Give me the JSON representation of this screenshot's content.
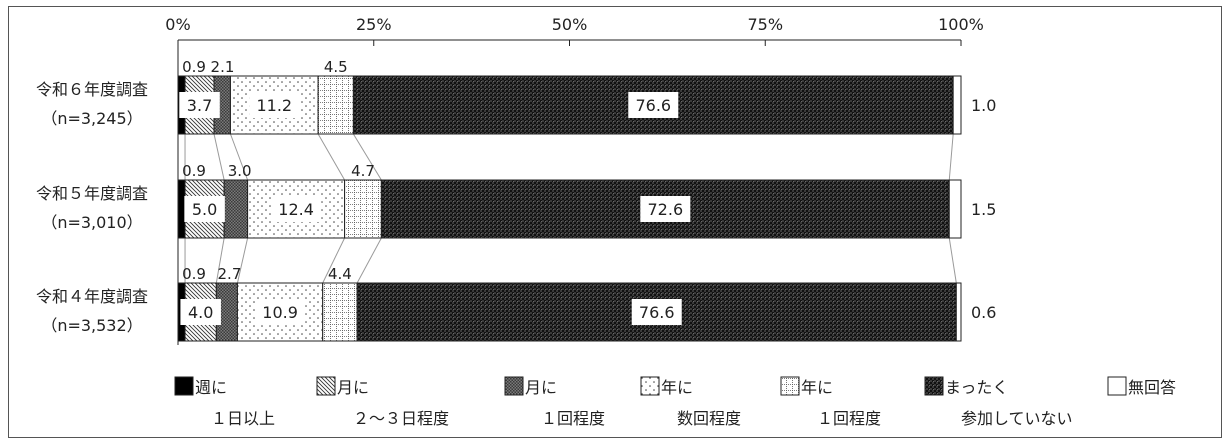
{
  "chart_data": {
    "type": "bar",
    "orientation": "horizontal",
    "stacked": true,
    "xlim": [
      0,
      100
    ],
    "x_ticks": [
      "0%",
      "25%",
      "50%",
      "75%",
      "100%"
    ],
    "grid": false,
    "legend_position": "bottom",
    "categories": [
      {
        "name": "令和６年度調査",
        "n": "（n=3,245）"
      },
      {
        "name": "令和５年度調査",
        "n": "（n=3,010）"
      },
      {
        "name": "令和４年度調査",
        "n": "（n=3,532）"
      }
    ],
    "series": [
      {
        "name_line1": "週に",
        "name_line2": "１日以上",
        "pattern": "solid-black",
        "values": [
          0.9,
          0.9,
          0.9
        ]
      },
      {
        "name_line1": "月に",
        "name_line2": "２～３日程度",
        "pattern": "diagonal-hatch",
        "values": [
          3.7,
          5.0,
          4.0
        ]
      },
      {
        "name_line1": "月に",
        "name_line2": "１回程度",
        "pattern": "gray-dense-check",
        "values": [
          2.1,
          3.0,
          2.7
        ]
      },
      {
        "name_line1": "年に",
        "name_line2": "数回程度",
        "pattern": "sparse-dots",
        "values": [
          11.2,
          12.4,
          10.9
        ]
      },
      {
        "name_line1": "年に",
        "name_line2": "１回程度",
        "pattern": "dotted-grid",
        "values": [
          4.5,
          4.7,
          4.4
        ]
      },
      {
        "name_line1": "まったく",
        "name_line2": "参加していない",
        "pattern": "dark-check",
        "values": [
          76.6,
          72.6,
          76.6
        ]
      },
      {
        "name_line1": "無回答",
        "name_line2": "",
        "pattern": "white",
        "values": [
          1.0,
          1.5,
          0.6
        ]
      }
    ],
    "labels": [
      {
        "above": [
          "0.9",
          "2.1",
          "4.5"
        ],
        "inside": [
          "3.7",
          "11.2",
          "76.6"
        ],
        "right": "1.0"
      },
      {
        "above": [
          "0.9",
          "3.0",
          "4.7"
        ],
        "inside": [
          "5.0",
          "12.4",
          "72.6"
        ],
        "right": "1.5"
      },
      {
        "above": [
          "0.9",
          "2.7",
          "4.4"
        ],
        "inside": [
          "4.0",
          "10.9",
          "76.6"
        ],
        "right": "0.6"
      }
    ]
  }
}
